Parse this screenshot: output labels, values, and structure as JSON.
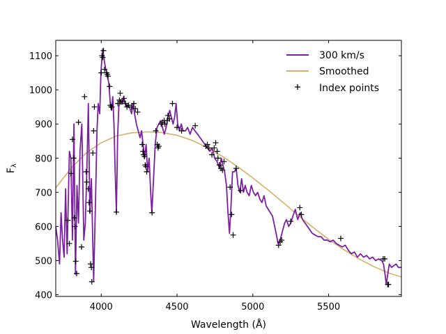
{
  "chart_data": {
    "type": "line",
    "title": "",
    "xlabel": "Wavelength (Å)",
    "ylabel": "Fλ",
    "ylabel_main": "F",
    "ylabel_sub": "λ",
    "xlim": [
      3700,
      5980
    ],
    "ylim": [
      395,
      1145
    ],
    "xticks": [
      4000,
      4500,
      5000,
      5500
    ],
    "yticks": [
      400,
      500,
      600,
      700,
      800,
      900,
      1000,
      1100
    ],
    "legend_position": "top-right",
    "series": [
      {
        "name": "300 km/s",
        "kind": "line",
        "color": "#7b1fa2",
        "points": [
          [
            3700,
            600
          ],
          [
            3712,
            560
          ],
          [
            3725,
            490
          ],
          [
            3735,
            640
          ],
          [
            3745,
            560
          ],
          [
            3755,
            510
          ],
          [
            3765,
            710
          ],
          [
            3775,
            520
          ],
          [
            3790,
            820
          ],
          [
            3800,
            800
          ],
          [
            3810,
            560
          ],
          [
            3820,
            900
          ],
          [
            3830,
            460
          ],
          [
            3840,
            720
          ],
          [
            3850,
            610
          ],
          [
            3860,
            820
          ],
          [
            3872,
            900
          ],
          [
            3885,
            560
          ],
          [
            3895,
            610
          ],
          [
            3905,
            760
          ],
          [
            3915,
            960
          ],
          [
            3925,
            640
          ],
          [
            3935,
            740
          ],
          [
            3950,
            440
          ],
          [
            3962,
            670
          ],
          [
            3972,
            880
          ],
          [
            3980,
            960
          ],
          [
            3990,
            930
          ],
          [
            3998,
            1050
          ],
          [
            4004,
            1090
          ],
          [
            4010,
            1120
          ],
          [
            4016,
            1100
          ],
          [
            4022,
            1080
          ],
          [
            4030,
            1060
          ],
          [
            4040,
            1040
          ],
          [
            4050,
            1020
          ],
          [
            4060,
            960
          ],
          [
            4068,
            940
          ],
          [
            4076,
            980
          ],
          [
            4084,
            900
          ],
          [
            4092,
            760
          ],
          [
            4100,
            640
          ],
          [
            4108,
            860
          ],
          [
            4116,
            950
          ],
          [
            4126,
            970
          ],
          [
            4138,
            960
          ],
          [
            4148,
            980
          ],
          [
            4158,
            960
          ],
          [
            4168,
            950
          ],
          [
            4178,
            955
          ],
          [
            4190,
            945
          ],
          [
            4200,
            930
          ],
          [
            4210,
            960
          ],
          [
            4220,
            930
          ],
          [
            4232,
            900
          ],
          [
            4244,
            880
          ],
          [
            4256,
            860
          ],
          [
            4266,
            880
          ],
          [
            4276,
            840
          ],
          [
            4286,
            800
          ],
          [
            4296,
            840
          ],
          [
            4306,
            760
          ],
          [
            4316,
            800
          ],
          [
            4326,
            700
          ],
          [
            4334,
            640
          ],
          [
            4344,
            730
          ],
          [
            4356,
            840
          ],
          [
            4368,
            890
          ],
          [
            4380,
            900
          ],
          [
            4392,
            910
          ],
          [
            4404,
            890
          ],
          [
            4416,
            870
          ],
          [
            4428,
            890
          ],
          [
            4440,
            920
          ],
          [
            4452,
            940
          ],
          [
            4462,
            920
          ],
          [
            4474,
            900
          ],
          [
            4484,
            920
          ],
          [
            4494,
            960
          ],
          [
            4504,
            900
          ],
          [
            4516,
            880
          ],
          [
            4528,
            900
          ],
          [
            4540,
            880
          ],
          [
            4556,
            880
          ],
          [
            4570,
            890
          ],
          [
            4586,
            870
          ],
          [
            4602,
            890
          ],
          [
            4618,
            880
          ],
          [
            4636,
            870
          ],
          [
            4652,
            860
          ],
          [
            4668,
            850
          ],
          [
            4684,
            840
          ],
          [
            4700,
            830
          ],
          [
            4716,
            820
          ],
          [
            4732,
            830
          ],
          [
            4748,
            800
          ],
          [
            4764,
            790
          ],
          [
            4780,
            770
          ],
          [
            4792,
            800
          ],
          [
            4802,
            780
          ],
          [
            4814,
            760
          ],
          [
            4826,
            720
          ],
          [
            4836,
            640
          ],
          [
            4846,
            580
          ],
          [
            4856,
            660
          ],
          [
            4866,
            760
          ],
          [
            4878,
            760
          ],
          [
            4890,
            770
          ],
          [
            4902,
            720
          ],
          [
            4914,
            700
          ],
          [
            4926,
            740
          ],
          [
            4938,
            700
          ],
          [
            4950,
            720
          ],
          [
            4962,
            700
          ],
          [
            4976,
            690
          ],
          [
            4990,
            720
          ],
          [
            5004,
            700
          ],
          [
            5018,
            690
          ],
          [
            5032,
            700
          ],
          [
            5046,
            680
          ],
          [
            5060,
            670
          ],
          [
            5074,
            690
          ],
          [
            5088,
            660
          ],
          [
            5102,
            650
          ],
          [
            5116,
            640
          ],
          [
            5130,
            630
          ],
          [
            5144,
            600
          ],
          [
            5156,
            575
          ],
          [
            5166,
            550
          ],
          [
            5176,
            555
          ],
          [
            5186,
            570
          ],
          [
            5198,
            590
          ],
          [
            5210,
            610
          ],
          [
            5222,
            620
          ],
          [
            5236,
            600
          ],
          [
            5250,
            610
          ],
          [
            5264,
            630
          ],
          [
            5280,
            650
          ],
          [
            5296,
            620
          ],
          [
            5312,
            640
          ],
          [
            5328,
            620
          ],
          [
            5344,
            610
          ],
          [
            5360,
            600
          ],
          [
            5376,
            590
          ],
          [
            5392,
            580
          ],
          [
            5410,
            575
          ],
          [
            5430,
            570
          ],
          [
            5450,
            570
          ],
          [
            5470,
            560
          ],
          [
            5490,
            560
          ],
          [
            5510,
            555
          ],
          [
            5530,
            560
          ],
          [
            5550,
            550
          ],
          [
            5570,
            545
          ],
          [
            5590,
            540
          ],
          [
            5610,
            545
          ],
          [
            5630,
            530
          ],
          [
            5650,
            520
          ],
          [
            5670,
            525
          ],
          [
            5690,
            510
          ],
          [
            5710,
            520
          ],
          [
            5730,
            510
          ],
          [
            5750,
            515
          ],
          [
            5770,
            505
          ],
          [
            5790,
            510
          ],
          [
            5810,
            500
          ],
          [
            5830,
            505
          ],
          [
            5850,
            500
          ],
          [
            5862,
            490
          ],
          [
            5872,
            460
          ],
          [
            5880,
            430
          ],
          [
            5890,
            460
          ],
          [
            5900,
            490
          ],
          [
            5915,
            480
          ],
          [
            5930,
            485
          ],
          [
            5945,
            490
          ],
          [
            5960,
            480
          ],
          [
            5980,
            480
          ]
        ]
      },
      {
        "name": "Smoothed",
        "kind": "line",
        "color": "#d4b06a",
        "points": [
          [
            3700,
            713
          ],
          [
            3800,
            770
          ],
          [
            3900,
            815
          ],
          [
            4000,
            845
          ],
          [
            4100,
            865
          ],
          [
            4200,
            874
          ],
          [
            4300,
            877
          ],
          [
            4400,
            875
          ],
          [
            4500,
            867
          ],
          [
            4600,
            852
          ],
          [
            4700,
            831
          ],
          [
            4800,
            805
          ],
          [
            4900,
            775
          ],
          [
            5000,
            742
          ],
          [
            5100,
            707
          ],
          [
            5200,
            670
          ],
          [
            5300,
            632
          ],
          [
            5400,
            596
          ],
          [
            5500,
            562
          ],
          [
            5600,
            532
          ],
          [
            5700,
            505
          ],
          [
            5800,
            482
          ],
          [
            5900,
            463
          ],
          [
            5980,
            452
          ]
        ]
      },
      {
        "name": "Index points",
        "kind": "markers",
        "marker": "+",
        "color": "#000000",
        "points": [
          [
            3780,
            618
          ],
          [
            3790,
            550
          ],
          [
            3800,
            755
          ],
          [
            3810,
            855
          ],
          [
            3818,
            800
          ],
          [
            3822,
            625
          ],
          [
            3826,
            600
          ],
          [
            3832,
            498
          ],
          [
            3838,
            462
          ],
          [
            3850,
            905
          ],
          [
            3870,
            540
          ],
          [
            3890,
            980
          ],
          [
            3900,
            760
          ],
          [
            3905,
            730
          ],
          [
            3915,
            710
          ],
          [
            3920,
            670
          ],
          [
            3925,
            645
          ],
          [
            3930,
            490
          ],
          [
            3935,
            480
          ],
          [
            3938,
            438
          ],
          [
            3945,
            815
          ],
          [
            3950,
            880
          ],
          [
            3955,
            950
          ],
          [
            4000,
            1050
          ],
          [
            4005,
            1100
          ],
          [
            4010,
            1095
          ],
          [
            4015,
            1115
          ],
          [
            4022,
            1060
          ],
          [
            4035,
            1050
          ],
          [
            4040,
            1045
          ],
          [
            4045,
            1040
          ],
          [
            4055,
            1010
          ],
          [
            4060,
            955
          ],
          [
            4065,
            950
          ],
          [
            4070,
            950
          ],
          [
            4100,
            642
          ],
          [
            4110,
            960
          ],
          [
            4120,
            970
          ],
          [
            4125,
            990
          ],
          [
            4130,
            965
          ],
          [
            4140,
            965
          ],
          [
            4150,
            975
          ],
          [
            4160,
            960
          ],
          [
            4170,
            950
          ],
          [
            4180,
            955
          ],
          [
            4200,
            950
          ],
          [
            4215,
            960
          ],
          [
            4225,
            945
          ],
          [
            4240,
            935
          ],
          [
            4270,
            840
          ],
          [
            4275,
            820
          ],
          [
            4280,
            810
          ],
          [
            4285,
            805
          ],
          [
            4290,
            780
          ],
          [
            4295,
            775
          ],
          [
            4300,
            760
          ],
          [
            4335,
            640
          ],
          [
            4360,
            880
          ],
          [
            4370,
            840
          ],
          [
            4375,
            830
          ],
          [
            4380,
            835
          ],
          [
            4395,
            900
          ],
          [
            4405,
            905
          ],
          [
            4415,
            910
          ],
          [
            4420,
            900
          ],
          [
            4435,
            910
          ],
          [
            4440,
            925
          ],
          [
            4450,
            915
          ],
          [
            4470,
            960
          ],
          [
            4500,
            890
          ],
          [
            4530,
            880
          ],
          [
            4620,
            895
          ],
          [
            4690,
            835
          ],
          [
            4700,
            840
          ],
          [
            4710,
            830
          ],
          [
            4730,
            810
          ],
          [
            4745,
            830
          ],
          [
            4755,
            845
          ],
          [
            4765,
            820
          ],
          [
            4770,
            800
          ],
          [
            4780,
            780
          ],
          [
            4790,
            770
          ],
          [
            4800,
            765
          ],
          [
            4810,
            790
          ],
          [
            4850,
            715
          ],
          [
            4860,
            635
          ],
          [
            4870,
            575
          ],
          [
            4890,
            770
          ],
          [
            4920,
            705
          ],
          [
            5170,
            545
          ],
          [
            5180,
            555
          ],
          [
            5190,
            560
          ],
          [
            5250,
            615
          ],
          [
            5310,
            655
          ],
          [
            5320,
            635
          ],
          [
            5580,
            565
          ],
          [
            5860,
            505
          ],
          [
            5870,
            505
          ],
          [
            5890,
            430
          ],
          [
            5895,
            430
          ]
        ]
      }
    ]
  }
}
